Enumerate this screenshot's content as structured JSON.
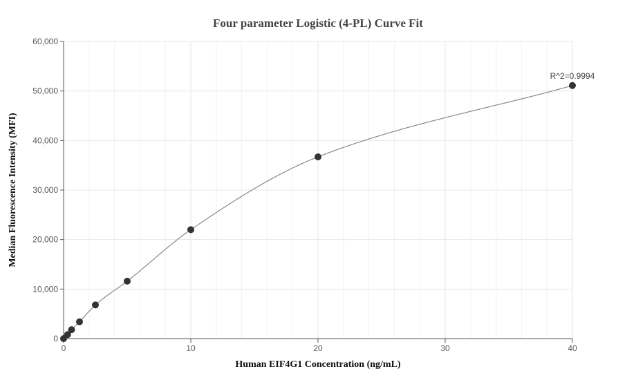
{
  "chart_data": {
    "type": "scatter",
    "title": "Four parameter Logistic (4-PL) Curve Fit",
    "xlabel": "Human EIF4G1 Concentration (ng/mL)",
    "ylabel": "Median Fluorescence Intensity (MFI)",
    "xlim": [
      0,
      40
    ],
    "ylim": [
      0,
      60000
    ],
    "x_ticks": [
      0,
      10,
      20,
      30,
      40
    ],
    "x_tick_labels": [
      "0",
      "10",
      "20",
      "30",
      "40"
    ],
    "y_ticks": [
      0,
      10000,
      20000,
      30000,
      40000,
      50000,
      60000
    ],
    "y_tick_labels": [
      "0",
      "10,000",
      "20,000",
      "30,000",
      "40,000",
      "50,000",
      "60,000"
    ],
    "grid": true,
    "series": [
      {
        "points": [
          {
            "x": 0,
            "y": 0
          },
          {
            "x": 0.3125,
            "y": 800
          },
          {
            "x": 0.625,
            "y": 1800
          },
          {
            "x": 1.25,
            "y": 3400
          },
          {
            "x": 2.5,
            "y": 6800
          },
          {
            "x": 5,
            "y": 11600
          },
          {
            "x": 10,
            "y": 22000
          },
          {
            "x": 20,
            "y": 36700
          },
          {
            "x": 40,
            "y": 51100
          }
        ],
        "color": "#333333"
      }
    ],
    "fit_curve": {
      "model": "4PL",
      "color": "#888888"
    },
    "annotation": {
      "text": "R^2=0.9994",
      "at_x": 40,
      "at_y": 51100
    }
  }
}
